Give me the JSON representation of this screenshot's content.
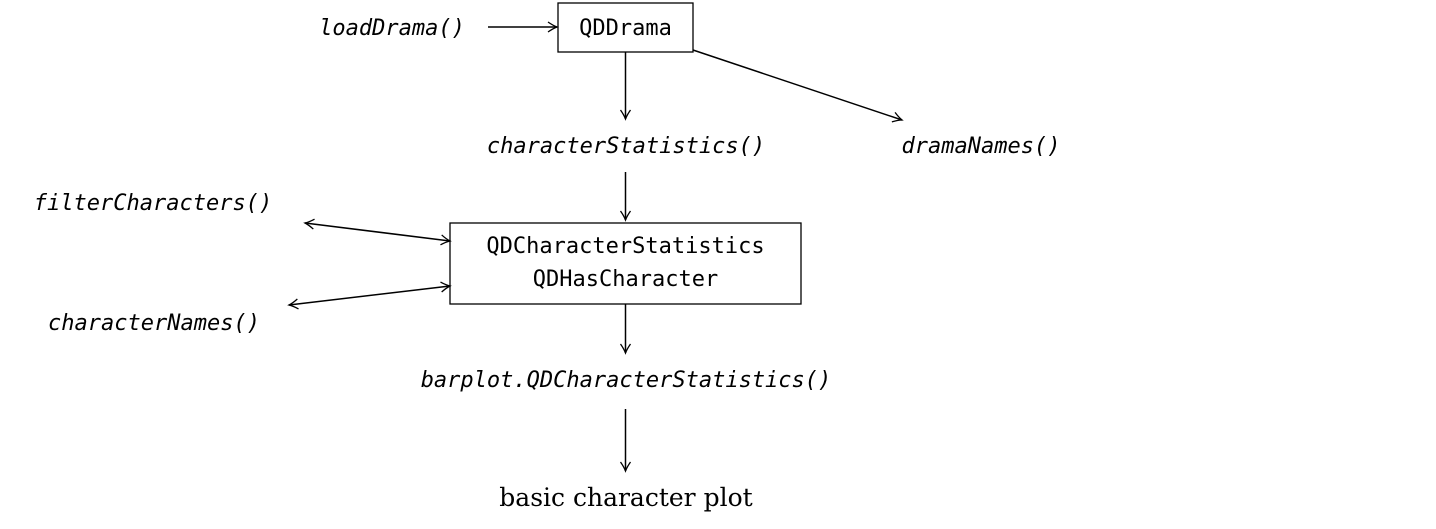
{
  "nodes": {
    "load_drama": "loadDrama()",
    "qd_drama": "QDDrama",
    "character_statistics": "characterStatistics()",
    "drama_names": "dramaNames()",
    "filter_characters": "filterCharacters()",
    "character_names": "characterNames()",
    "qd_character_statistics": "QDCharacterStatistics",
    "qd_has_character": "QDHasCharacter",
    "barplot": "barplot.QDCharacterStatistics()",
    "basic_plot": "basic character plot"
  },
  "edges": [
    {
      "from": "loadDrama()",
      "to": "QDDrama"
    },
    {
      "from": "QDDrama",
      "to": "characterStatistics()"
    },
    {
      "from": "QDDrama",
      "to": "dramaNames()"
    },
    {
      "from": "characterStatistics()",
      "to": "QDCharacterStatistics"
    },
    {
      "from": "QDCharacterStatistics",
      "to": "filterCharacters()",
      "bidirectional": true
    },
    {
      "from": "QDCharacterStatistics",
      "to": "characterNames()",
      "bidirectional": true
    },
    {
      "from": "QDCharacterStatistics",
      "to": "barplot.QDCharacterStatistics()"
    },
    {
      "from": "barplot.QDCharacterStatistics()",
      "to": "basic character plot"
    }
  ]
}
